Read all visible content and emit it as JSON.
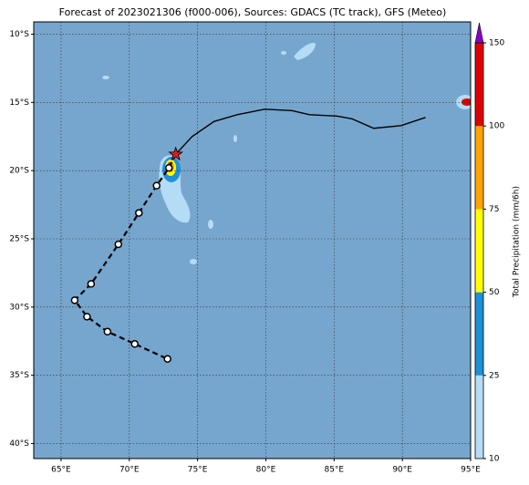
{
  "map": {
    "title": "Forecast of 2023021306 (f000-006), Sources: GDACS (TC track), GFS (Meteo)",
    "xlim": [
      63,
      95
    ],
    "ylim": [
      -41.1,
      -9.1
    ],
    "xticks": [
      {
        "value": 65,
        "label": "65°E"
      },
      {
        "value": 70,
        "label": "70°E"
      },
      {
        "value": 75,
        "label": "75°E"
      },
      {
        "value": 80,
        "label": "80°E"
      },
      {
        "value": 85,
        "label": "85°E"
      },
      {
        "value": 90,
        "label": "90°E"
      },
      {
        "value": 95,
        "label": "95°E"
      }
    ],
    "yticks": [
      {
        "value": -10,
        "label": "10°S"
      },
      {
        "value": -15,
        "label": "15°S"
      },
      {
        "value": -20,
        "label": "20°S"
      },
      {
        "value": -25,
        "label": "25°S"
      },
      {
        "value": -30,
        "label": "30°S"
      },
      {
        "value": -35,
        "label": "35°S"
      },
      {
        "value": -40,
        "label": "40°S"
      }
    ],
    "grid": true,
    "observed_track": {
      "lon": [
        73.4,
        74.6,
        76.2,
        77.9,
        79.9,
        81.9,
        83.2,
        85.2,
        86.3,
        87.9,
        89.9,
        91.7
      ],
      "lat": [
        -18.8,
        -17.5,
        -16.4,
        -15.9,
        -15.5,
        -15.6,
        -15.9,
        -16.0,
        -16.2,
        -16.9,
        -16.7,
        -16.1
      ],
      "color": "#000000"
    },
    "forecast_track": {
      "lon": [
        73.4,
        72.9,
        72.0,
        70.7,
        69.2,
        67.2,
        66.0,
        66.9,
        68.4,
        70.4,
        72.8
      ],
      "lat": [
        -18.8,
        -19.8,
        -21.1,
        -23.1,
        -25.4,
        -28.3,
        -29.5,
        -30.7,
        -31.8,
        -32.7,
        -33.8
      ],
      "color": "#000000"
    },
    "current_position": {
      "lon": 73.4,
      "lat": -18.8,
      "color": "#d62020"
    }
  },
  "colorbar": {
    "label": "Total Precipitation (mm/6h)",
    "levels": [
      10,
      25,
      50,
      75,
      100,
      150
    ],
    "colors": [
      "#b4dcf5",
      "#1e90d8",
      "#ffff00",
      "#ffa500",
      "#e00000"
    ],
    "extend_color": "#8a00c8"
  }
}
